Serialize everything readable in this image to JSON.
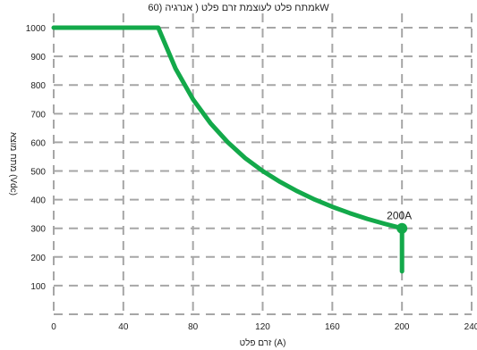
{
  "chart_data": {
    "type": "line",
    "title": "מתח פלט לעוצמת זרם פלט ( אנרגיה (60kW",
    "xlabel": "זרם פלט (A)",
    "ylabel": "מתח מוצא (Vdc)",
    "xlim": [
      0,
      240
    ],
    "ylim": [
      0,
      1050
    ],
    "xticks": [
      0,
      40,
      80,
      120,
      160,
      200,
      240
    ],
    "yticks": [
      100,
      200,
      300,
      400,
      500,
      600,
      700,
      800,
      900,
      1000
    ],
    "grid": true,
    "line_color": "#13a94a",
    "grid_color": "#a6a6a6",
    "series": [
      {
        "values": [
          {
            "x": 0,
            "y": 1000
          },
          {
            "x": 60,
            "y": 1000
          },
          {
            "x": 70,
            "y": 857
          },
          {
            "x": 80,
            "y": 750
          },
          {
            "x": 90,
            "y": 667
          },
          {
            "x": 100,
            "y": 600
          },
          {
            "x": 110,
            "y": 545
          },
          {
            "x": 120,
            "y": 500
          },
          {
            "x": 130,
            "y": 462
          },
          {
            "x": 140,
            "y": 429
          },
          {
            "x": 150,
            "y": 400
          },
          {
            "x": 160,
            "y": 375
          },
          {
            "x": 170,
            "y": 353
          },
          {
            "x": 180,
            "y": 333
          },
          {
            "x": 190,
            "y": 316
          },
          {
            "x": 200,
            "y": 300
          },
          {
            "x": 200,
            "y": 150
          }
        ]
      }
    ],
    "annotations": [
      {
        "text": "200A",
        "x": 200,
        "y": 300
      }
    ]
  }
}
